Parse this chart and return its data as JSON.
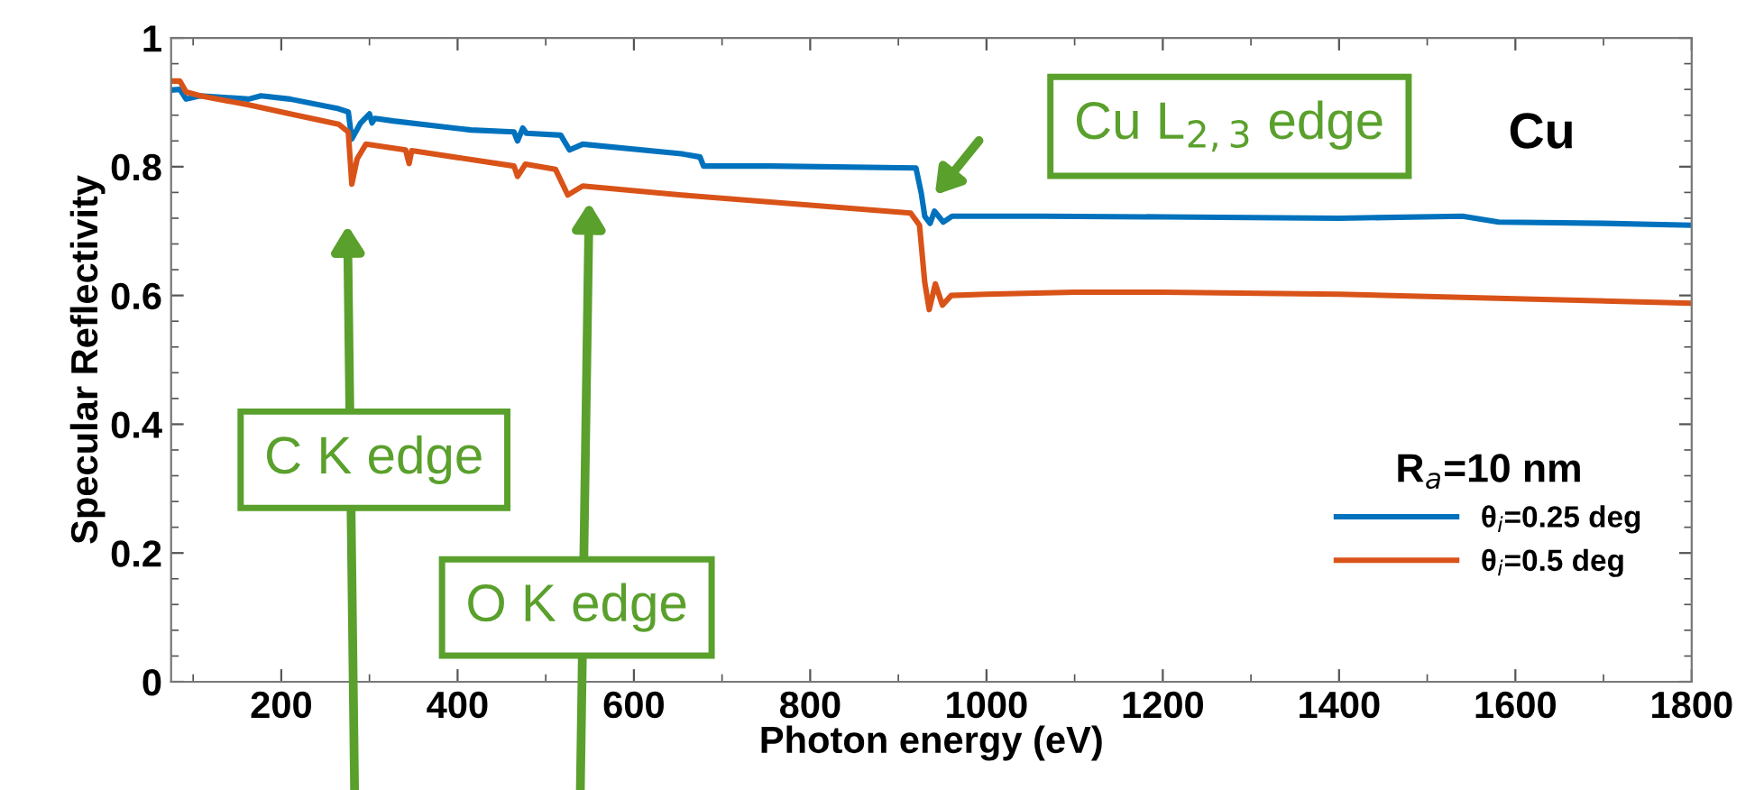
{
  "chart_data": {
    "type": "line",
    "xlabel": "Photon energy (eV)",
    "ylabel": "Specular Reflectivity",
    "xlim": [
      75,
      1800
    ],
    "xticks": [
      200,
      400,
      600,
      800,
      1000,
      1200,
      1400,
      1600,
      1800
    ],
    "ylim": [
      0,
      1
    ],
    "yticks": [
      0,
      0.2,
      0.4,
      0.6,
      0.8,
      1
    ],
    "legend": "lower right",
    "legend_title": "R$_{a}$=10 nm",
    "grid": false,
    "line_style": "solid",
    "marker": "none",
    "series": [
      {
        "name": "θ$_{i}$=0.25 deg",
        "color": "#0072bd",
        "x": [
          75,
          85,
          92,
          108,
          163,
          177,
          210,
          265,
          276,
          280,
          290,
          300,
          303,
          306,
          327,
          415,
          464,
          468,
          474,
          478,
          517,
          527,
          542,
          654,
          675,
          679,
          755,
          920,
          926,
          930,
          936,
          941,
          951,
          961,
          1063,
          1200,
          1400,
          1540,
          1581,
          1700,
          1800
        ],
        "values": [
          0.919,
          0.92,
          0.905,
          0.91,
          0.905,
          0.91,
          0.905,
          0.89,
          0.885,
          0.843,
          0.868,
          0.882,
          0.868,
          0.875,
          0.871,
          0.857,
          0.854,
          0.84,
          0.86,
          0.852,
          0.849,
          0.826,
          0.835,
          0.82,
          0.815,
          0.801,
          0.801,
          0.798,
          0.759,
          0.723,
          0.712,
          0.731,
          0.714,
          0.723,
          0.723,
          0.722,
          0.72,
          0.723,
          0.714,
          0.712,
          0.709
        ]
      },
      {
        "name": "θ$_{i}$=0.5 deg",
        "color": "#d95319",
        "x": [
          75,
          85,
          92,
          108,
          163,
          210,
          265,
          276,
          280,
          286,
          296,
          341,
          345,
          348,
          464,
          468,
          477,
          511,
          525,
          542,
          654,
          914,
          924,
          930,
          935,
          942,
          950,
          960,
          1000,
          1100,
          1200,
          1400,
          1600,
          1800
        ],
        "values": [
          0.933,
          0.933,
          0.916,
          0.91,
          0.896,
          0.882,
          0.866,
          0.854,
          0.773,
          0.812,
          0.835,
          0.826,
          0.805,
          0.825,
          0.801,
          0.785,
          0.804,
          0.796,
          0.756,
          0.77,
          0.756,
          0.728,
          0.709,
          0.62,
          0.578,
          0.618,
          0.585,
          0.6,
          0.602,
          0.605,
          0.605,
          0.602,
          0.595,
          0.588
        ]
      }
    ],
    "annotations": [
      "C K edge",
      "O K edge",
      "Cu L$_{2,3}$ edge",
      "Cu"
    ]
  }
}
